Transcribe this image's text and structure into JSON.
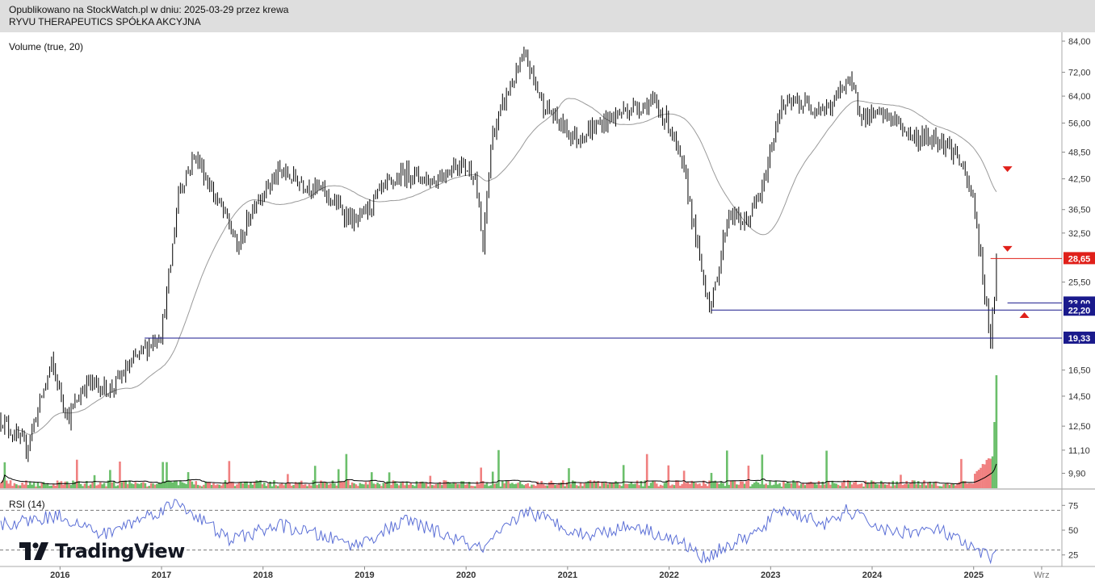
{
  "header": {
    "line1": "Opublikowano na StockWatch.pl w dniu: 2025-03-29 przez krewa",
    "line2": "RYVU THERAPEUTICS SPÓŁKA AKCYJNA"
  },
  "indicators": {
    "volume_label": "Volume (true, 20)",
    "rsi_label": "RSI (14)"
  },
  "branding": {
    "logo_text": "TradingView",
    "logo_icon": "tradingview-logo-icon"
  },
  "colors": {
    "candle": "#000000",
    "ma": "#9a9a9a",
    "vol_up": "#6bbf6b",
    "vol_down": "#f08080",
    "vol_ma": "#000000",
    "rsi": "#5b6fd6",
    "level_line": "#1a1a8c",
    "resistance_line": "#e0201a",
    "arrow": "#e0201a"
  },
  "chart_data": [
    {
      "type": "candlestick",
      "y_scale": "log",
      "ylim": [
        9.0,
        86.0
      ],
      "x_range": [
        "2015-06",
        "2025-10"
      ],
      "x_ticks": [
        "2016",
        "2017",
        "2018",
        "2019",
        "2020",
        "2021",
        "2022",
        "2023",
        "2024",
        "2025",
        "Wrz"
      ],
      "y_ticks": [
        "84,00",
        "72,00",
        "64,00",
        "56,00",
        "48,50",
        "42,50",
        "36,50",
        "32,50",
        "25,50",
        "16,50",
        "14,50",
        "12,50",
        "11,10",
        "9,90"
      ],
      "price_path": [
        [
          "2015-06",
          13.0
        ],
        [
          "2015-09",
          11.2
        ],
        [
          "2015-12",
          17.0
        ],
        [
          "2016-02",
          13.0
        ],
        [
          "2016-04",
          15.5
        ],
        [
          "2016-07",
          15.0
        ],
        [
          "2016-10",
          17.5
        ],
        [
          "2017-01",
          20.0
        ],
        [
          "2017-02",
          27.0
        ],
        [
          "2017-03",
          40.0
        ],
        [
          "2017-05",
          48.0
        ],
        [
          "2017-07",
          40.0
        ],
        [
          "2017-09",
          34.0
        ],
        [
          "2017-10",
          30.0
        ],
        [
          "2017-12",
          38.0
        ],
        [
          "2018-03",
          44.0
        ],
        [
          "2018-08",
          40.0
        ],
        [
          "2018-12",
          34.0
        ],
        [
          "2019-03",
          40.0
        ],
        [
          "2019-06",
          44.0
        ],
        [
          "2019-09",
          42.0
        ],
        [
          "2019-12",
          46.0
        ],
        [
          "2020-02",
          44.0
        ],
        [
          "2020-03",
          30.0
        ],
        [
          "2020-04",
          52.0
        ],
        [
          "2020-06",
          66.0
        ],
        [
          "2020-08",
          78.0
        ],
        [
          "2020-10",
          62.0
        ],
        [
          "2020-12",
          56.0
        ],
        [
          "2021-02",
          52.0
        ],
        [
          "2021-05",
          56.0
        ],
        [
          "2021-08",
          60.0
        ],
        [
          "2021-11",
          62.0
        ],
        [
          "2022-01",
          56.0
        ],
        [
          "2022-03",
          42.0
        ],
        [
          "2022-05",
          26.0
        ],
        [
          "2022-06",
          22.5
        ],
        [
          "2022-08",
          36.0
        ],
        [
          "2022-10",
          34.0
        ],
        [
          "2022-12",
          40.0
        ],
        [
          "2023-02",
          60.0
        ],
        [
          "2023-04",
          62.0
        ],
        [
          "2023-08",
          60.0
        ],
        [
          "2023-10",
          70.0
        ],
        [
          "2023-12",
          58.0
        ],
        [
          "2024-03",
          58.0
        ],
        [
          "2024-06",
          52.0
        ],
        [
          "2024-09",
          52.0
        ],
        [
          "2024-11",
          48.0
        ],
        [
          "2025-01",
          38.0
        ],
        [
          "2025-02",
          27.0
        ],
        [
          "2025-03",
          19.3
        ],
        [
          "2025-03-28",
          28.65
        ]
      ],
      "series": [
        {
          "type": "candles"
        },
        {
          "type": "moving_average"
        }
      ],
      "levels": [
        {
          "label": "28,65",
          "value": 28.65,
          "color": "#e0201a",
          "from": "2025-03"
        },
        {
          "label": "23,00",
          "value": 23.0,
          "color": "#1a1a8c",
          "from": "2025-05"
        },
        {
          "label": "22,20",
          "value": 22.2,
          "color": "#1a1a8c",
          "from": "2022-06"
        },
        {
          "label": "19,33",
          "value": 19.33,
          "color": "#1a1a8c",
          "from": "2016-11"
        }
      ],
      "annotations": [
        {
          "shape": "triangle-down",
          "date": "2025-05",
          "value": 44.5
        },
        {
          "shape": "triangle-down",
          "date": "2025-05",
          "value": 30.0
        },
        {
          "shape": "triangle-up",
          "date": "2025-07",
          "value": 21.7
        }
      ]
    },
    {
      "type": "bar",
      "name": "Volume (true, 20)",
      "note": "volume histogram, relative scale; spike near 2025-03"
    },
    {
      "type": "line",
      "name": "RSI (14)",
      "ylim": [
        15,
        85
      ],
      "y_ticks": [
        "75",
        "50",
        "25"
      ],
      "bands": [
        70,
        30
      ],
      "path": [
        [
          "2015-06",
          55
        ],
        [
          "2016-01",
          65
        ],
        [
          "2016-06",
          45
        ],
        [
          "2017-03",
          78
        ],
        [
          "2017-09",
          40
        ],
        [
          "2018-03",
          55
        ],
        [
          "2018-12",
          35
        ],
        [
          "2019-06",
          60
        ],
        [
          "2020-03",
          30
        ],
        [
          "2020-08",
          70
        ],
        [
          "2021-03",
          45
        ],
        [
          "2021-09",
          55
        ],
        [
          "2022-03",
          35
        ],
        [
          "2022-05",
          22
        ],
        [
          "2022-12",
          50
        ],
        [
          "2023-02",
          72
        ],
        [
          "2023-08",
          55
        ],
        [
          "2023-10",
          70
        ],
        [
          "2024-03",
          48
        ],
        [
          "2024-09",
          50
        ],
        [
          "2025-01",
          30
        ],
        [
          "2025-03",
          22
        ],
        [
          "2025-03-28",
          40
        ]
      ]
    }
  ]
}
